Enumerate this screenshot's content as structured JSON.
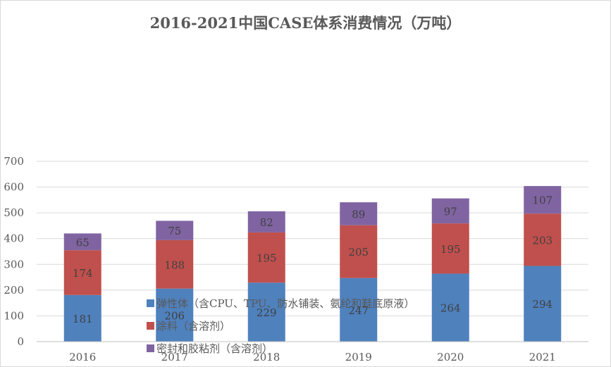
{
  "chart_data": {
    "type": "bar",
    "stacked": true,
    "title": "2016-2021中国CASE体系消费情况（万吨）",
    "categories": [
      "2016",
      "2017",
      "2018",
      "2019",
      "2020",
      "2021"
    ],
    "series": [
      {
        "name": "弹性体（含CPU、TPU、防水铺装、氨纶和鞋底原液）",
        "values": [
          181,
          206,
          229,
          247,
          264,
          294
        ],
        "color": "#4f81bd"
      },
      {
        "name": "涂料（含溶剂）",
        "values": [
          174,
          188,
          195,
          205,
          195,
          203
        ],
        "color": "#c0504d"
      },
      {
        "name": "密封和胶粘剂（含溶剂）",
        "values": [
          65,
          75,
          82,
          89,
          97,
          107
        ],
        "color": "#8064a2"
      }
    ],
    "ylim": [
      0,
      700
    ],
    "yticks": [
      0,
      100,
      200,
      300,
      400,
      500,
      600,
      700
    ],
    "grid": true,
    "legend_position": "center-bottom (overlapping plot)"
  }
}
